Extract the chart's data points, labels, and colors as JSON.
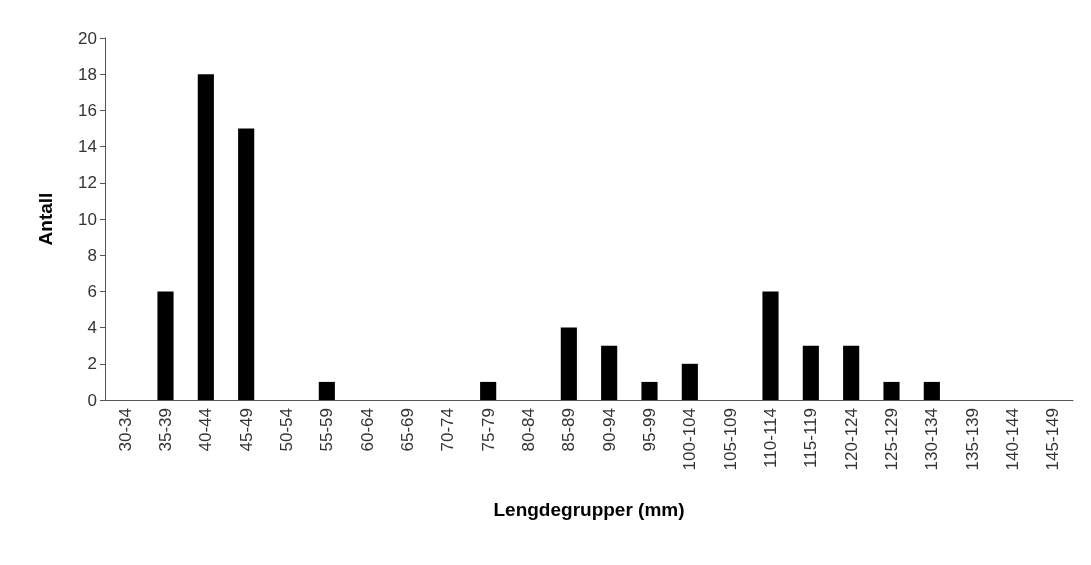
{
  "chart_data": {
    "type": "bar",
    "xlabel": "Lengdegrupper (mm)",
    "ylabel": "Antall",
    "categories": [
      "30-34",
      "35-39",
      "40-44",
      "45-49",
      "50-54",
      "55-59",
      "60-64",
      "65-69",
      "70-74",
      "75-79",
      "80-84",
      "85-89",
      "90-94",
      "95-99",
      "100-104",
      "105-109",
      "110-114",
      "115-119",
      "120-124",
      "125-129",
      "130-134",
      "135-139",
      "140-144",
      "145-149"
    ],
    "values": [
      0,
      6,
      18,
      15,
      0,
      1,
      0,
      0,
      0,
      1,
      0,
      4,
      3,
      1,
      2,
      0,
      6,
      3,
      3,
      1,
      1,
      0,
      0,
      0
    ],
    "color": "#000000",
    "ylim": [
      0,
      20
    ],
    "yticks": [
      0,
      2,
      4,
      6,
      8,
      10,
      12,
      14,
      16,
      18,
      20
    ],
    "grid": false
  }
}
